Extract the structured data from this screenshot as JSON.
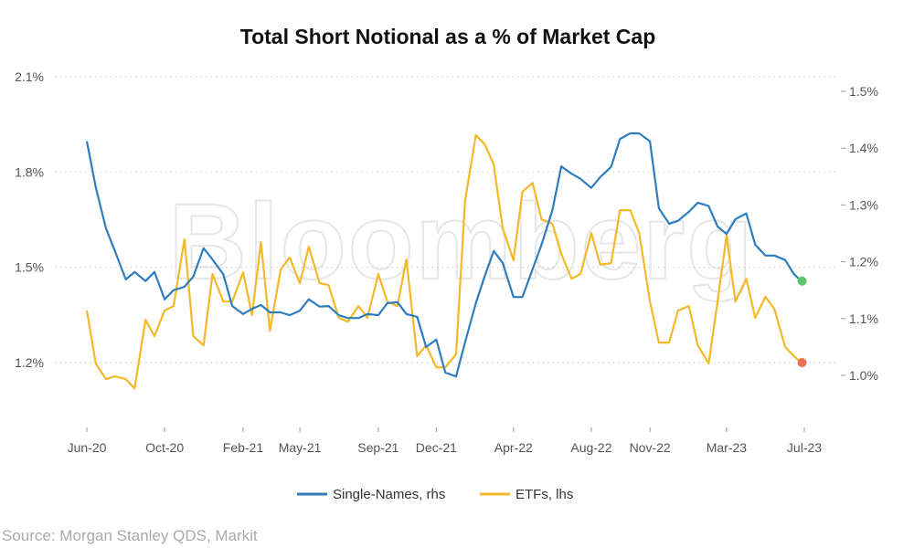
{
  "chart_data": {
    "type": "line",
    "title": "Total Short Notional as a % of Market Cap",
    "source": "Source: Morgan Stanley QDS, Markit",
    "watermark": "Bloomberg",
    "grid": true,
    "legend_placement": "bottom",
    "x_axis": {
      "type": "date",
      "range": [
        "2020-06-01",
        "2023-07-01"
      ],
      "tick_labels": [
        "Jun-20",
        "Oct-20",
        "Feb-21",
        "May-21",
        "Sep-21",
        "Dec-21",
        "Apr-22",
        "Aug-22",
        "Nov-22",
        "Mar-23",
        "Jul-23"
      ],
      "tick_dates": [
        "2020-06-01",
        "2020-10-01",
        "2021-02-01",
        "2021-05-01",
        "2021-09-01",
        "2021-12-01",
        "2022-04-01",
        "2022-08-01",
        "2022-11-01",
        "2023-03-01",
        "2023-07-01"
      ]
    },
    "y_left": {
      "ylim": [
        1.2,
        2.1
      ],
      "ticks": [
        1.2,
        1.5,
        1.8,
        2.1
      ],
      "tick_labels": [
        "1.2%",
        "1.5%",
        "1.8%",
        "2.1%"
      ]
    },
    "y_right": {
      "ylim": [
        1.0,
        1.5
      ],
      "ticks": [
        1.0,
        1.1,
        1.2,
        1.3,
        1.4,
        1.5
      ],
      "tick_labels": [
        "1.0%",
        "1.1%",
        "1.2%",
        "1.3%",
        "1.4%",
        "1.5%"
      ]
    },
    "dates": [
      "2020-06-01",
      "2020-06-15",
      "2020-07-01",
      "2020-07-15",
      "2020-08-01",
      "2020-08-15",
      "2020-09-01",
      "2020-09-15",
      "2020-10-01",
      "2020-10-15",
      "2020-11-01",
      "2020-11-15",
      "2020-12-01",
      "2020-12-15",
      "2021-01-01",
      "2021-01-15",
      "2021-02-01",
      "2021-02-15",
      "2021-03-01",
      "2021-03-15",
      "2021-04-01",
      "2021-04-15",
      "2021-05-01",
      "2021-05-15",
      "2021-06-01",
      "2021-06-15",
      "2021-07-01",
      "2021-07-15",
      "2021-08-01",
      "2021-08-15",
      "2021-09-01",
      "2021-09-15",
      "2021-10-01",
      "2021-10-15",
      "2021-11-01",
      "2021-11-15",
      "2021-12-01",
      "2021-12-15",
      "2022-01-01",
      "2022-01-15",
      "2022-02-01",
      "2022-02-15",
      "2022-03-01",
      "2022-03-15",
      "2022-04-01",
      "2022-04-15",
      "2022-05-01",
      "2022-05-15",
      "2022-06-01",
      "2022-06-15",
      "2022-07-01",
      "2022-07-15",
      "2022-08-01",
      "2022-08-15",
      "2022-09-01",
      "2022-09-15",
      "2022-10-01",
      "2022-10-15",
      "2022-11-01",
      "2022-11-15",
      "2022-12-01",
      "2022-12-15",
      "2023-01-01",
      "2023-01-15",
      "2023-02-01",
      "2023-02-15",
      "2023-03-01",
      "2023-03-15",
      "2023-04-01",
      "2023-04-15",
      "2023-05-01",
      "2023-05-15",
      "2023-06-01",
      "2023-06-15",
      "2023-06-26"
    ],
    "series": [
      {
        "name": "Single-Names, rhs",
        "axis": "right",
        "color": "#2f7dbf",
        "end_marker_color": "#5cc56b",
        "values": [
          1.412,
          1.331,
          1.259,
          1.219,
          1.169,
          1.182,
          1.166,
          1.182,
          1.134,
          1.15,
          1.156,
          1.174,
          1.224,
          1.204,
          1.178,
          1.122,
          1.108,
          1.117,
          1.124,
          1.111,
          1.111,
          1.106,
          1.114,
          1.134,
          1.121,
          1.122,
          1.106,
          1.101,
          1.101,
          1.108,
          1.106,
          1.127,
          1.129,
          1.108,
          1.103,
          1.05,
          1.063,
          1.005,
          0.998,
          1.058,
          1.127,
          1.175,
          1.219,
          1.198,
          1.138,
          1.138,
          1.187,
          1.23,
          1.291,
          1.368,
          1.355,
          1.346,
          1.33,
          1.349,
          1.367,
          1.416,
          1.426,
          1.426,
          1.412,
          1.294,
          1.267,
          1.272,
          1.288,
          1.304,
          1.298,
          1.262,
          1.249,
          1.275,
          1.285,
          1.23,
          1.211,
          1.211,
          1.203,
          1.178,
          1.166
        ]
      },
      {
        "name": "ETFs, lhs",
        "axis": "left",
        "color": "#f5b829",
        "end_marker_color": "#e8704f",
        "values": [
          1.364,
          1.197,
          1.148,
          1.157,
          1.148,
          1.119,
          1.335,
          1.283,
          1.364,
          1.378,
          1.588,
          1.283,
          1.254,
          1.479,
          1.392,
          1.392,
          1.484,
          1.349,
          1.579,
          1.3,
          1.493,
          1.531,
          1.45,
          1.565,
          1.45,
          1.444,
          1.341,
          1.329,
          1.378,
          1.341,
          1.479,
          1.392,
          1.378,
          1.525,
          1.22,
          1.254,
          1.185,
          1.185,
          1.226,
          1.709,
          1.916,
          1.887,
          1.824,
          1.623,
          1.522,
          1.738,
          1.766,
          1.651,
          1.637,
          1.542,
          1.464,
          1.479,
          1.608,
          1.508,
          1.513,
          1.68,
          1.68,
          1.608,
          1.392,
          1.263,
          1.263,
          1.364,
          1.378,
          1.254,
          1.197,
          1.392,
          1.6,
          1.392,
          1.464,
          1.341,
          1.407,
          1.369,
          1.249,
          1.22,
          1.2
        ]
      }
    ]
  }
}
